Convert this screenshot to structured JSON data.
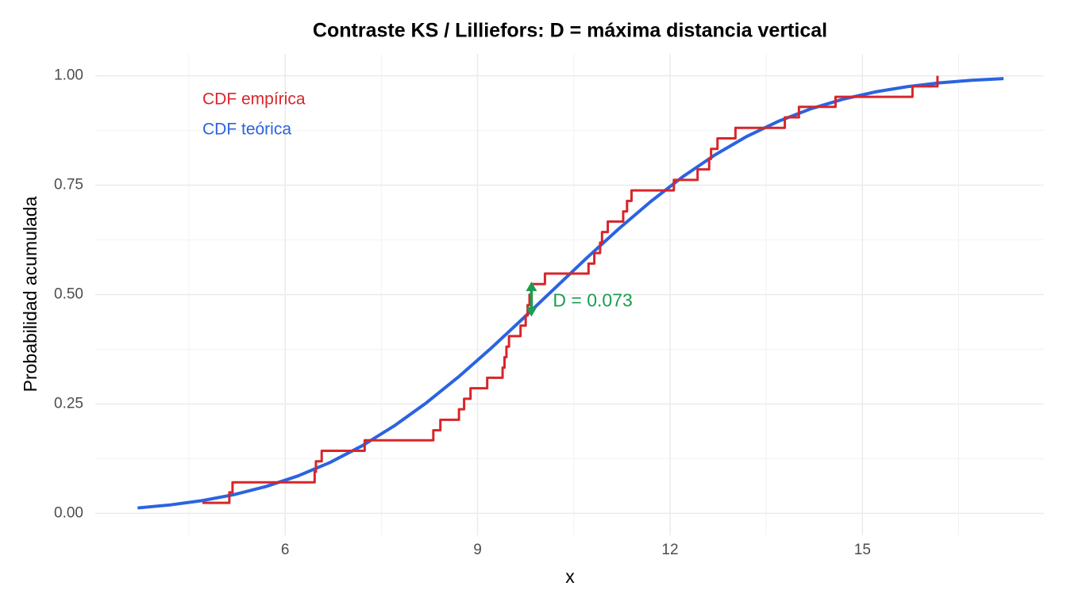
{
  "chart_data": {
    "type": "ecdf",
    "title": "Contraste KS / Lilliefors: D = máxima distancia vertical",
    "x_label": "x",
    "y_label": "Probabilidad acumulada",
    "xlim": [
      3.04,
      17.83
    ],
    "ylim": [
      -0.05,
      1.05
    ],
    "xticks": [
      6,
      9,
      12,
      15
    ],
    "yticks": [
      {
        "value": 0,
        "label": "0.00"
      },
      {
        "value": 0.25,
        "label": "0.25"
      },
      {
        "value": 0.5,
        "label": "0.50"
      },
      {
        "value": 0.75,
        "label": "0.75"
      },
      {
        "value": 1,
        "label": "1.00"
      }
    ],
    "xminorticks": [
      4.5,
      7.5,
      10.5,
      13.5,
      16.5
    ],
    "yminorticks": [
      0.125,
      0.375,
      0.625,
      0.875
    ],
    "grid": true,
    "series": [
      {
        "name": "CDF empírica",
        "color": "#d7262b",
        "step": true,
        "x": [
          4.71,
          5.13,
          5.18,
          6.46,
          6.48,
          6.57,
          7.24,
          8.31,
          8.42,
          8.71,
          8.79,
          8.89,
          9.15,
          9.39,
          9.42,
          9.45,
          9.49,
          9.67,
          9.75,
          9.78,
          9.81,
          9.84,
          10.05,
          10.73,
          10.82,
          10.91,
          10.94,
          11.03,
          11.27,
          11.33,
          11.4,
          12.06,
          12.43,
          12.61,
          12.64,
          12.74,
          13.02,
          13.79,
          14.01,
          14.58,
          15.78,
          16.17
        ],
        "values": [
          0.024,
          0.048,
          0.071,
          0.095,
          0.119,
          0.143,
          0.167,
          0.19,
          0.214,
          0.238,
          0.262,
          0.286,
          0.31,
          0.333,
          0.357,
          0.381,
          0.405,
          0.429,
          0.452,
          0.476,
          0.5,
          0.524,
          0.548,
          0.571,
          0.595,
          0.619,
          0.643,
          0.667,
          0.69,
          0.714,
          0.738,
          0.762,
          0.786,
          0.81,
          0.833,
          0.857,
          0.881,
          0.905,
          0.929,
          0.952,
          0.976,
          1.0
        ]
      },
      {
        "name": "CDF teórica",
        "color": "#2b63e0",
        "step": false,
        "x": [
          3.7,
          4.2,
          4.7,
          5.2,
          5.7,
          6.2,
          6.7,
          7.2,
          7.7,
          8.2,
          8.7,
          9.2,
          9.7,
          10.2,
          10.7,
          11.2,
          11.7,
          12.2,
          12.7,
          13.2,
          13.7,
          14.2,
          14.7,
          15.2,
          15.7,
          16.2,
          16.7,
          17.2
        ],
        "values": [
          0.0124,
          0.0192,
          0.0291,
          0.0428,
          0.0613,
          0.0856,
          0.1164,
          0.1544,
          0.1999,
          0.2525,
          0.3116,
          0.376,
          0.4443,
          0.514,
          0.5834,
          0.6502,
          0.7127,
          0.7694,
          0.8192,
          0.8617,
          0.8967,
          0.9249,
          0.9467,
          0.9632,
          0.9753,
          0.9838,
          0.9897,
          0.9936
        ]
      }
    ],
    "annotation": {
      "label": "D = 0.073",
      "value": 0.073,
      "x": 9.84,
      "y_low": 0.453,
      "y_high": 0.526,
      "color": "#1a9e50"
    }
  }
}
